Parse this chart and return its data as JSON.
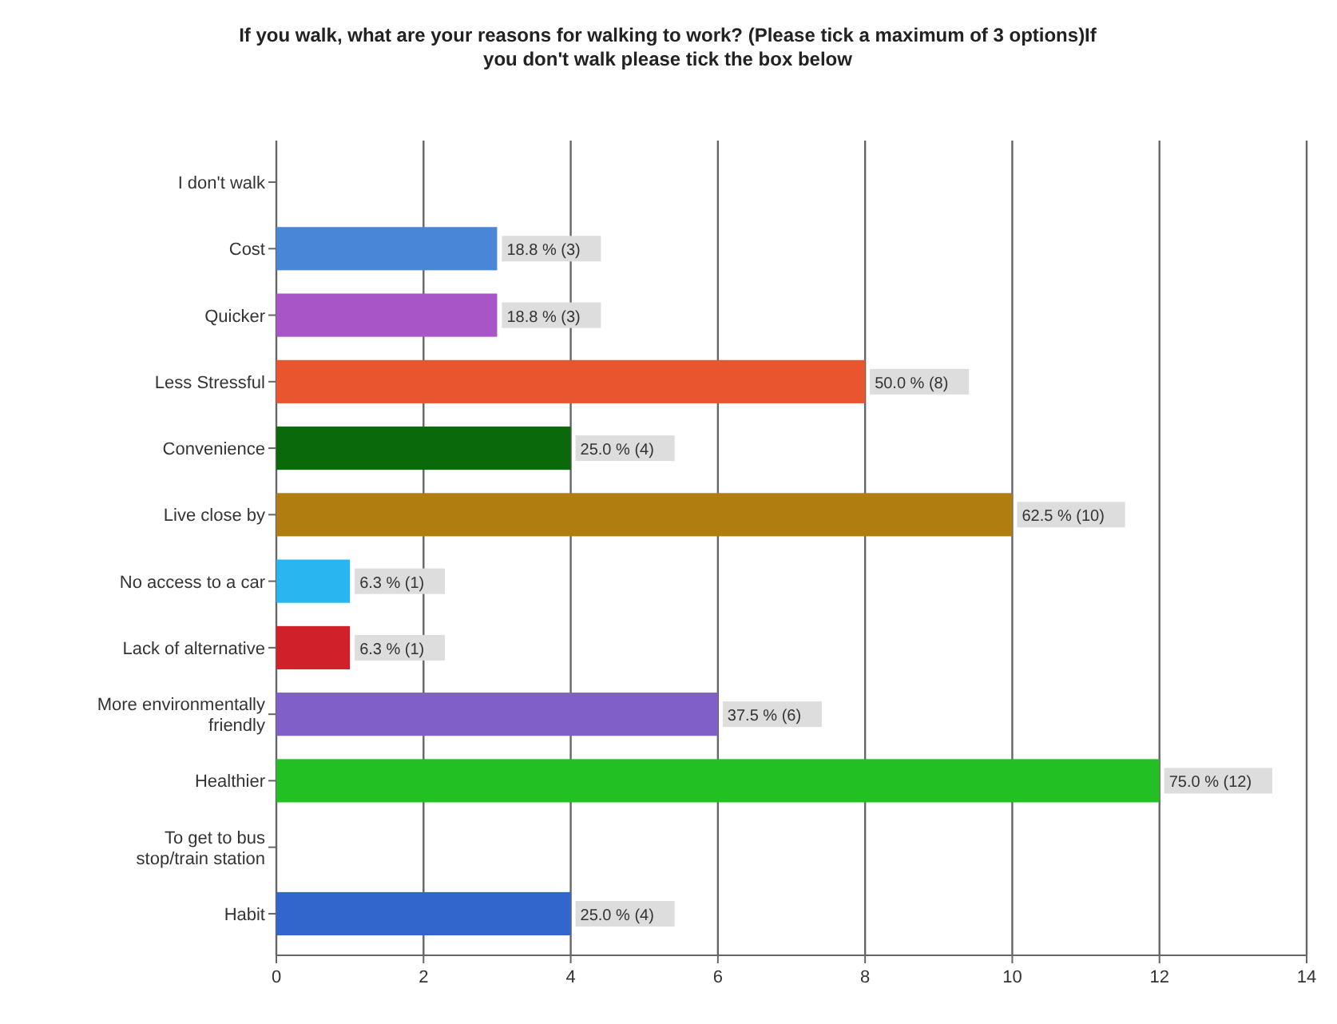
{
  "chart_data": {
    "type": "bar",
    "orientation": "horizontal",
    "title": "If you walk, what are your reasons for walking to work? (Please tick a maximum of 3 options)If you don't walk please tick the box below",
    "categories": [
      "I don't walk",
      "Cost",
      "Quicker",
      "Less Stressful",
      "Convenience",
      "Live close by",
      "No access to a car",
      "Lack of alternative",
      "More environmentally friendly",
      "Healthier",
      "To get to bus stop/train station",
      "Habit"
    ],
    "values": [
      0,
      3,
      3,
      8,
      4,
      10,
      1,
      1,
      6,
      12,
      0,
      4
    ],
    "colors": [
      null,
      "#4a86d8",
      "#a855c8",
      "#e8552e",
      "#0a6a0a",
      "#b07d10",
      "#29b6f0",
      "#d0202a",
      "#8060c8",
      "#22c022",
      null,
      "#3366cc"
    ],
    "value_labels": [
      null,
      "18.8 % (3)",
      "18.8 % (3)",
      "50.0 % (8)",
      "25.0 % (4)",
      "62.5 % (10)",
      "6.3 % (1)",
      "6.3 % (1)",
      "37.5 % (6)",
      "75.0 % (12)",
      null,
      "25.0 % (4)"
    ],
    "xlim": [
      0,
      14
    ],
    "xticks": [
      0,
      2,
      4,
      6,
      8,
      10,
      12,
      14
    ],
    "grid": "x"
  }
}
